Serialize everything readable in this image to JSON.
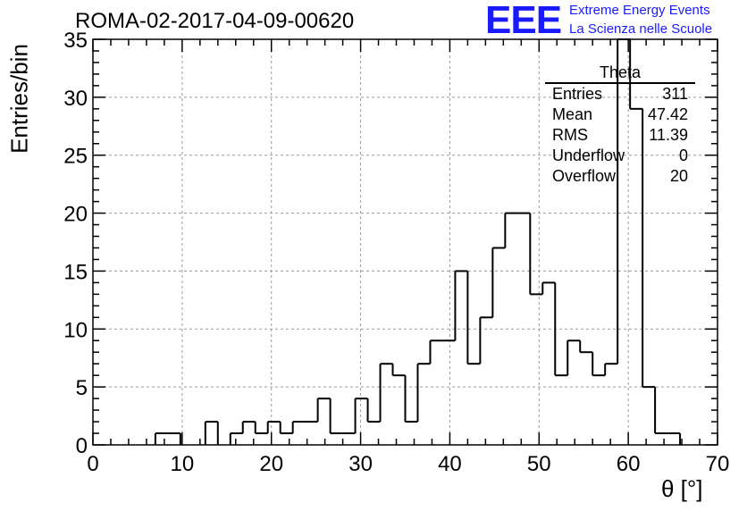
{
  "title": "ROMA-02-2017-04-09-00620",
  "logo": {
    "mark": "EEE",
    "line1": "Extreme Energy Events",
    "line2": "La Scienza nelle Scuole"
  },
  "stats": {
    "name": "Theta",
    "rows": [
      {
        "label": "Entries",
        "value": "311"
      },
      {
        "label": "Mean",
        "value": "47.42"
      },
      {
        "label": "RMS",
        "value": "11.39"
      },
      {
        "label": "Underflow",
        "value": "0"
      },
      {
        "label": "Overflow",
        "value": "20"
      }
    ]
  },
  "chart_data": {
    "type": "bar",
    "subtype": "histogram-step",
    "title": "ROMA-02-2017-04-09-00620",
    "xlabel": "θ [°]",
    "ylabel": "Entries/bin",
    "xlim": [
      0,
      70
    ],
    "ylim": [
      0,
      35
    ],
    "xticks": [
      0,
      10,
      20,
      30,
      40,
      50,
      60,
      70
    ],
    "yticks": [
      0,
      5,
      10,
      15,
      20,
      25,
      30,
      35
    ],
    "grid": true,
    "bin_width": 1.4,
    "bin_start": 0,
    "values": [
      0,
      0,
      0,
      0,
      0,
      1,
      1,
      0,
      0,
      2,
      0,
      1,
      2,
      1,
      2,
      1,
      2,
      2,
      4,
      1,
      1,
      4,
      2,
      7,
      6,
      2,
      7,
      9,
      9,
      15,
      7,
      11,
      17,
      20,
      20,
      13,
      14,
      6,
      9,
      8,
      6,
      7,
      35,
      29,
      5,
      1,
      1,
      0,
      0,
      0
    ],
    "color": "#000000"
  }
}
